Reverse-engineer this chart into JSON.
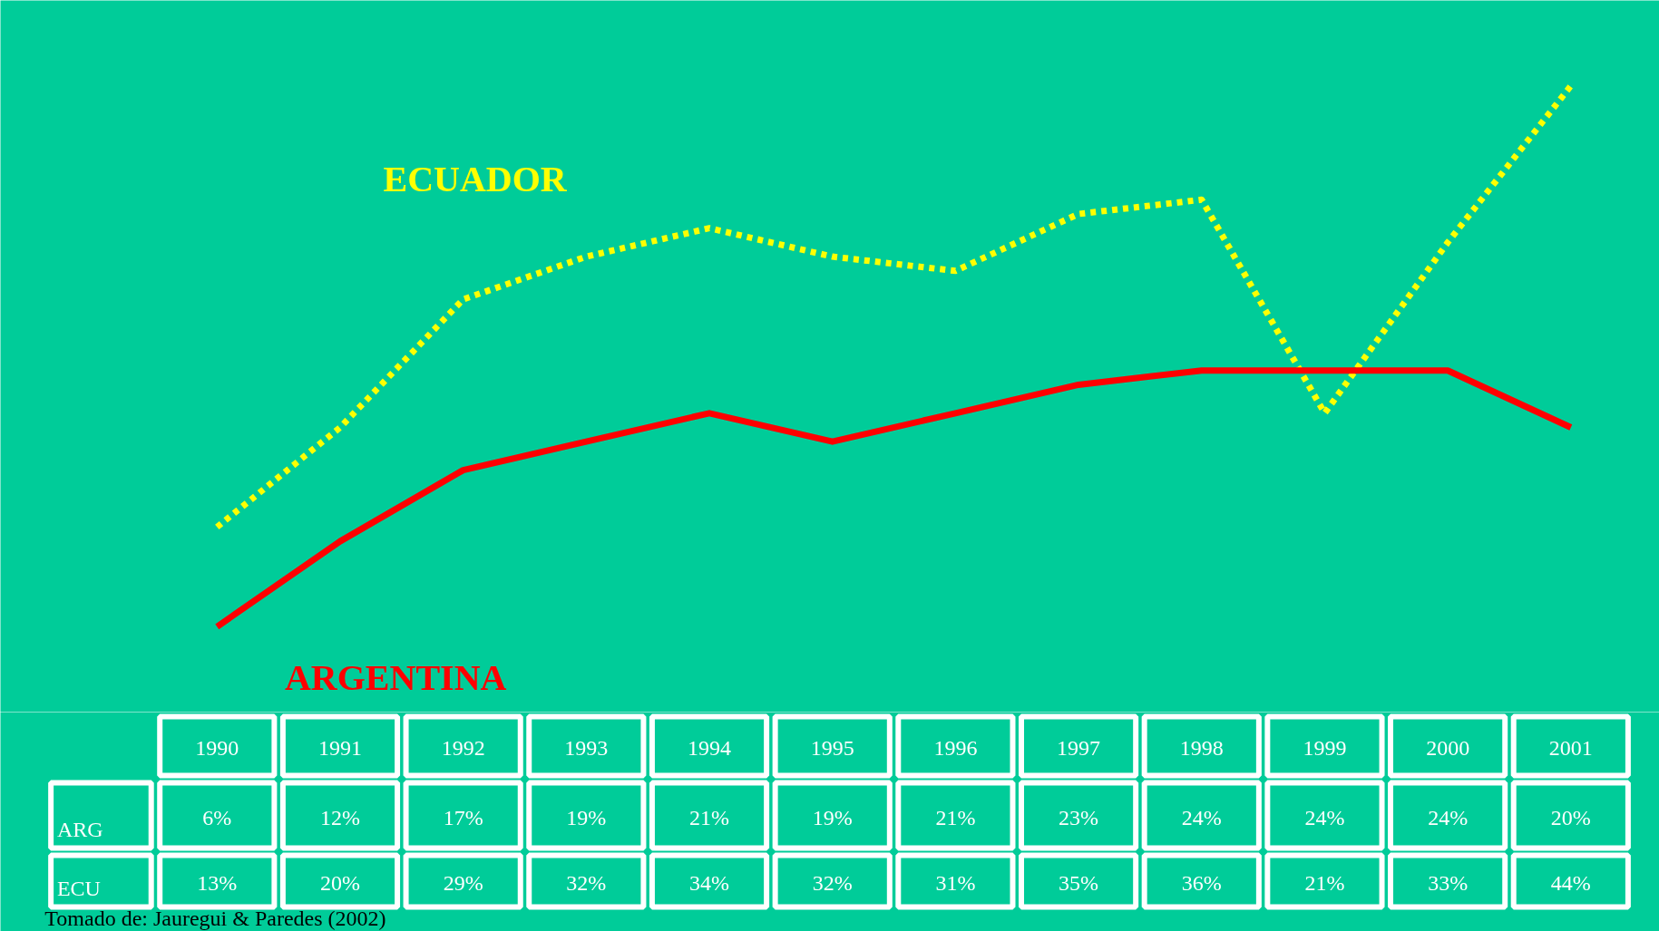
{
  "chart_data": {
    "type": "line",
    "categories": [
      "1990",
      "1991",
      "1992",
      "1993",
      "1994",
      "1995",
      "1996",
      "1997",
      "1998",
      "1999",
      "2000",
      "2001"
    ],
    "series": [
      {
        "name": "ECUADOR",
        "color": "#ffff00",
        "line_style": "dashed",
        "values": [
          13,
          20,
          29,
          32,
          34,
          32,
          31,
          35,
          36,
          21,
          33,
          44
        ],
        "value_labels": [
          "13%",
          "20%",
          "29%",
          "32%",
          "34%",
          "32%",
          "31%",
          "35%",
          "36%",
          "21%",
          "33%",
          "44%"
        ]
      },
      {
        "name": "ARGENTINA",
        "color": "#ff0000",
        "line_style": "solid",
        "values": [
          6,
          12,
          17,
          19,
          21,
          19,
          21,
          23,
          24,
          24,
          24,
          20
        ],
        "value_labels": [
          "6%",
          "12%",
          "17%",
          "19%",
          "21%",
          "19%",
          "21%",
          "23%",
          "24%",
          "24%",
          "24%",
          "20%"
        ]
      }
    ],
    "ylim": [
      0,
      50
    ],
    "tick_labels": false,
    "grid": false,
    "data_labels": true,
    "annotations": [
      "ECU",
      "ARG",
      "Tomado de: Jauregui & Paredes (2002)"
    ]
  }
}
